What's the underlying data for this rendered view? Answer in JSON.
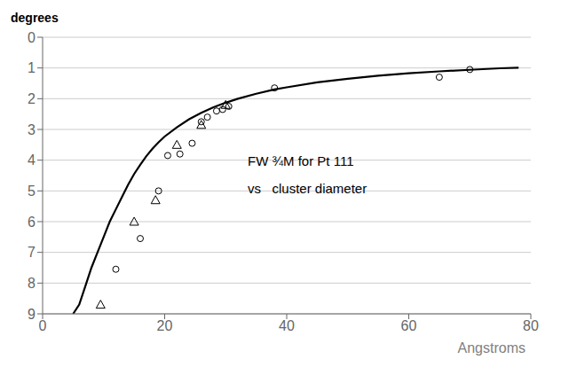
{
  "chart_data": {
    "type": "line",
    "xlabel": "Angstroms",
    "ylabel": "degrees",
    "xlim": [
      0,
      80
    ],
    "ylim": [
      9,
      0
    ],
    "xticks": [
      0,
      20,
      40,
      60,
      80
    ],
    "yticks": [
      0,
      1,
      2,
      3,
      4,
      5,
      6,
      7,
      8,
      9
    ],
    "grid": "y",
    "annotations": [
      "FW ¾M for Pt 111",
      "vs   cluster diameter"
    ],
    "series": [
      {
        "type": "line",
        "color": "#000000",
        "x": [
          5,
          6,
          7,
          8,
          9,
          10,
          11,
          12,
          13,
          14,
          15,
          16,
          17,
          18,
          19,
          20,
          22,
          24,
          26,
          28,
          30,
          32,
          35,
          38,
          40,
          45,
          50,
          55,
          60,
          65,
          70,
          75,
          78
        ],
        "values": [
          9.0,
          8.7,
          8.1,
          7.5,
          7.0,
          6.5,
          6.0,
          5.6,
          5.2,
          4.8,
          4.45,
          4.15,
          3.87,
          3.63,
          3.42,
          3.23,
          2.93,
          2.67,
          2.46,
          2.28,
          2.13,
          2.0,
          1.84,
          1.7,
          1.63,
          1.47,
          1.35,
          1.25,
          1.17,
          1.11,
          1.06,
          1.01,
          0.99
        ]
      },
      {
        "type": "scatter",
        "marker": "triangle",
        "color": "#000000",
        "x": [
          9.5,
          15,
          18.5,
          22,
          26,
          30
        ],
        "values": [
          8.7,
          6.0,
          5.3,
          3.5,
          2.85,
          2.2
        ]
      },
      {
        "type": "scatter",
        "marker": "circle",
        "color": "#000000",
        "x": [
          12,
          16,
          19,
          20.5,
          22.5,
          24.5,
          26,
          27,
          28.5,
          29.5,
          30.5,
          38,
          65,
          70
        ],
        "values": [
          7.55,
          6.55,
          5.0,
          3.85,
          3.8,
          3.45,
          2.75,
          2.6,
          2.4,
          2.35,
          2.25,
          1.65,
          1.3,
          1.05
        ]
      }
    ]
  }
}
